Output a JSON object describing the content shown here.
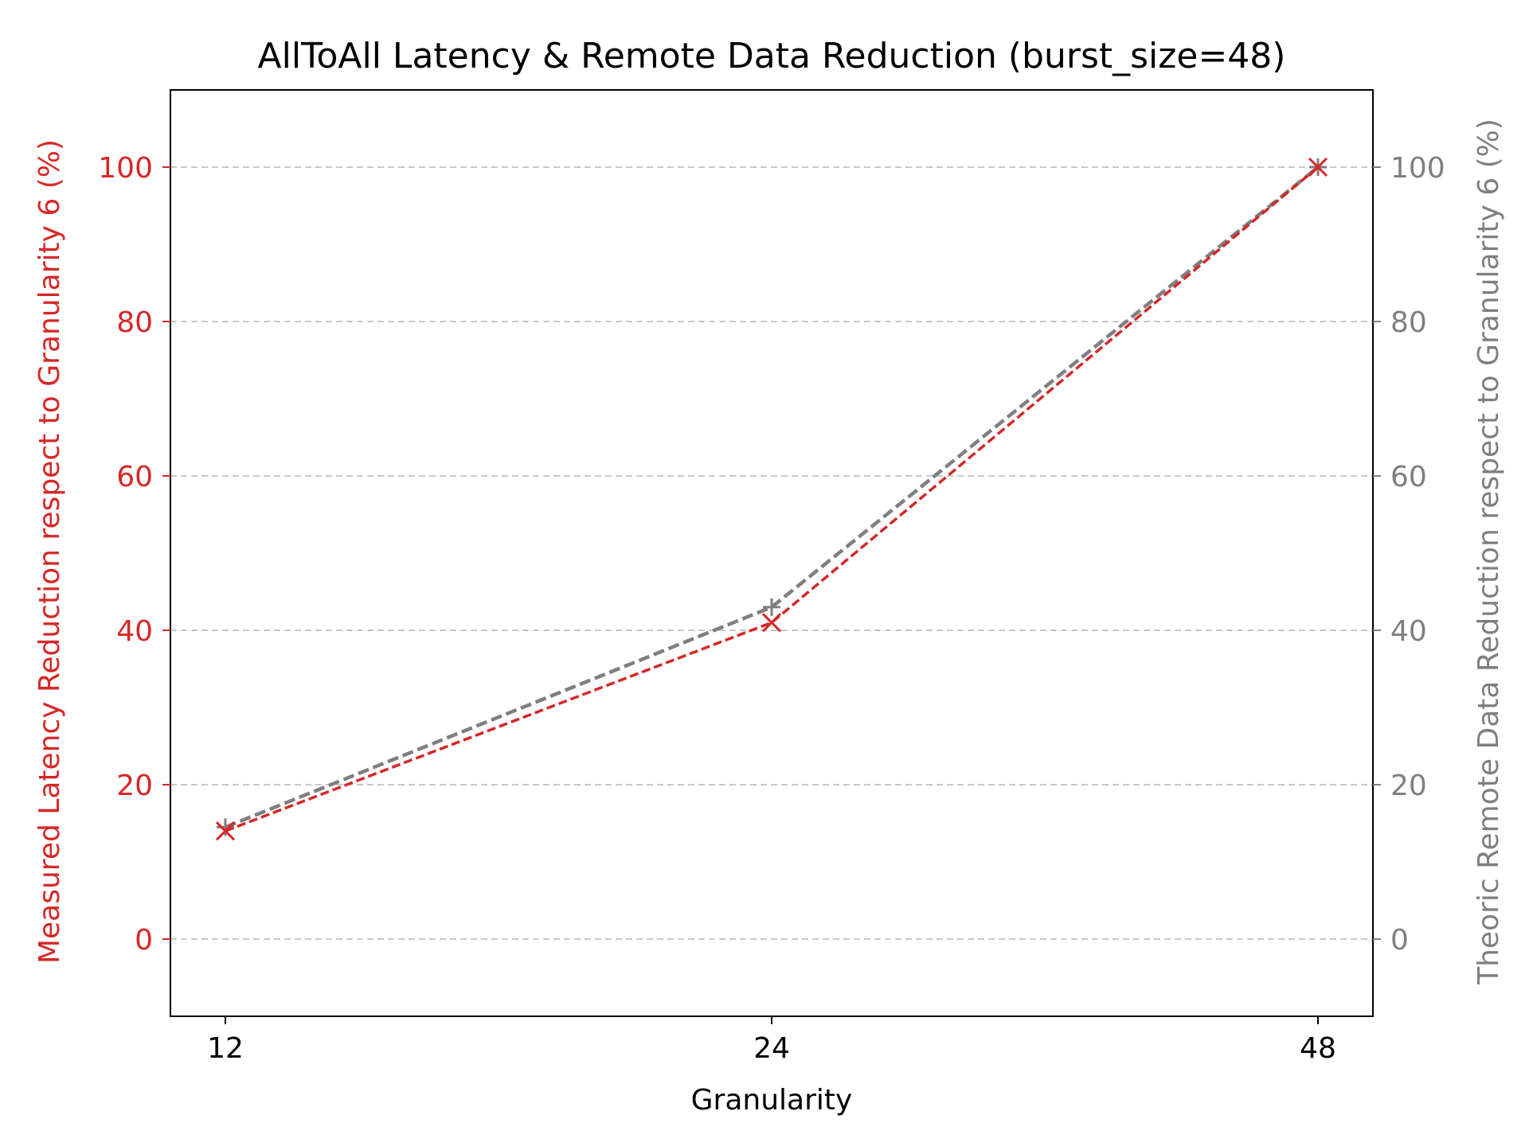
{
  "chart_data": {
    "type": "line",
    "title": "AllToAll Latency & Remote Data Reduction (burst_size=48)",
    "xlabel": "Granularity",
    "ylabel_left": "Measured Latency Reduction respect to Granularity 6 (%)",
    "ylabel_right": "Theoric Remote Data Reduction respect to Granularity 6 (%)",
    "x": [
      "12",
      "24",
      "48"
    ],
    "ylim": [
      -10,
      110
    ],
    "yticks": [
      0,
      20,
      40,
      60,
      80,
      100
    ],
    "grid": "horizontal dashed",
    "series": [
      {
        "axis": "left",
        "values": [
          14.0,
          41.0,
          100.0
        ],
        "color": "#d62728",
        "marker": "x",
        "linestyle": "dashed"
      },
      {
        "axis": "right",
        "values": [
          14.5,
          43.0,
          100.0
        ],
        "color": "#7f7f7f",
        "marker": "+",
        "linestyle": "dashed"
      }
    ],
    "axis_colors": {
      "left": "#d62728",
      "right": "#7f7f7f",
      "x": "#000000"
    }
  }
}
